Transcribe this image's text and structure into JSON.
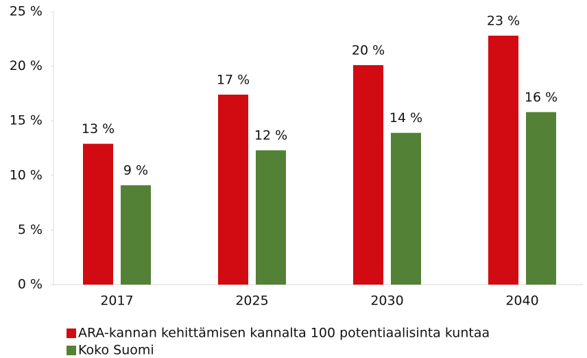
{
  "chart_data": {
    "type": "bar",
    "categories": [
      "2017",
      "2025",
      "2030",
      "2040"
    ],
    "series": [
      {
        "name": "ARA-kannan kehittämisen kannalta 100 potentiaalisinta kuntaa",
        "color": "#d20a11",
        "values": [
          12.9,
          17.4,
          20.1,
          22.8
        ],
        "value_labels": [
          "13 %",
          "17 %",
          "20 %",
          "23 %"
        ]
      },
      {
        "name": "Koko Suomi",
        "color": "#538135",
        "values": [
          9.1,
          12.3,
          13.9,
          15.8
        ],
        "value_labels": [
          "9 %",
          "12 %",
          "14 %",
          "16 %"
        ]
      }
    ],
    "ylim": [
      0,
      25
    ],
    "yticks": [
      {
        "value": 0,
        "label": "0 %"
      },
      {
        "value": 5,
        "label": "5 %"
      },
      {
        "value": 10,
        "label": "10 %"
      },
      {
        "value": 15,
        "label": "15 %"
      },
      {
        "value": 20,
        "label": "20 %"
      },
      {
        "value": 25,
        "label": "25 %"
      }
    ],
    "grid": false,
    "legend": "bottom-left"
  }
}
